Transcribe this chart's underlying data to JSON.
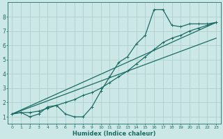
{
  "xlabel": "Humidex (Indice chaleur)",
  "bg_color": "#cce8e6",
  "grid_color": "#aed0cd",
  "line_color": "#1a6b64",
  "xlim": [
    -0.5,
    23.5
  ],
  "ylim": [
    0.5,
    9.0
  ],
  "xticks": [
    0,
    1,
    2,
    3,
    4,
    5,
    6,
    7,
    8,
    9,
    10,
    11,
    12,
    13,
    14,
    15,
    16,
    17,
    18,
    19,
    20,
    21,
    22,
    23
  ],
  "yticks": [
    1,
    2,
    3,
    4,
    5,
    6,
    7,
    8
  ],
  "curve1_x": [
    0,
    1,
    2,
    3,
    4,
    5,
    6,
    7,
    8,
    9,
    10,
    11,
    12,
    13,
    14,
    15,
    16,
    17,
    18,
    19,
    20,
    21,
    22,
    23
  ],
  "curve1_y": [
    1.2,
    1.3,
    1.0,
    1.2,
    1.7,
    1.8,
    1.2,
    1.0,
    1.0,
    1.7,
    2.8,
    3.8,
    4.8,
    5.2,
    6.1,
    6.7,
    8.5,
    8.5,
    7.4,
    7.3,
    7.5,
    7.5,
    7.5,
    7.6
  ],
  "curve2_x": [
    0,
    1,
    2,
    3,
    4,
    5,
    6,
    7,
    8,
    9,
    10,
    11,
    12,
    13,
    14,
    15,
    16,
    17,
    18,
    19,
    20,
    21,
    22,
    23
  ],
  "curve2_y": [
    1.2,
    1.3,
    1.3,
    1.4,
    1.6,
    1.8,
    2.0,
    2.2,
    2.5,
    2.7,
    3.0,
    3.4,
    3.8,
    4.2,
    4.7,
    5.2,
    5.7,
    6.2,
    6.5,
    6.7,
    7.0,
    7.2,
    7.4,
    7.6
  ],
  "line1_x": [
    0,
    23
  ],
  "line1_y": [
    1.2,
    7.6
  ],
  "line2_x": [
    0,
    23
  ],
  "line2_y": [
    1.2,
    6.5
  ]
}
